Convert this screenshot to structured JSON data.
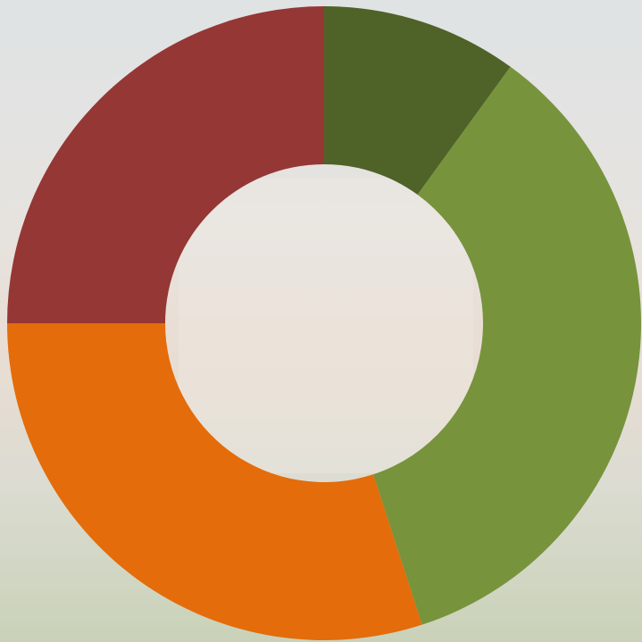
{
  "chart_data": {
    "type": "donut",
    "values": [
      10,
      35,
      30,
      25
    ],
    "colors": [
      "#4f6228",
      "#77933c",
      "#e46c0a",
      "#953735"
    ]
  }
}
